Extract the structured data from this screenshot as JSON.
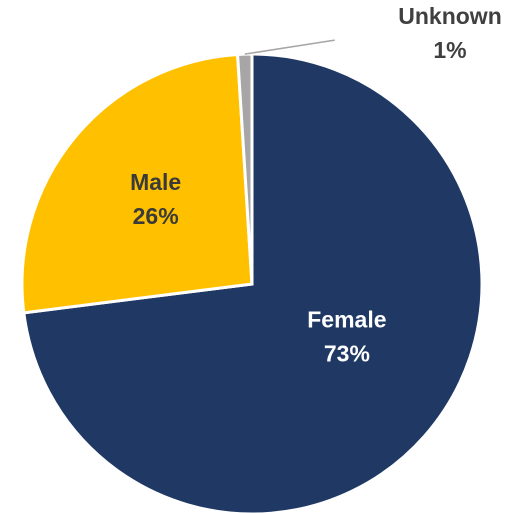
{
  "chart_data": {
    "type": "pie",
    "categories": [
      "Female",
      "Male",
      "Unknown"
    ],
    "values": [
      73,
      26,
      1
    ],
    "labels": [
      "73%",
      "26%",
      "1%"
    ],
    "colors": [
      "#1F3864",
      "#FFC000",
      "#A6A6A6"
    ],
    "label_colors": [
      "#FFFFFF",
      "#3A3A3A",
      "#404040"
    ],
    "legend": "none",
    "title": ""
  }
}
